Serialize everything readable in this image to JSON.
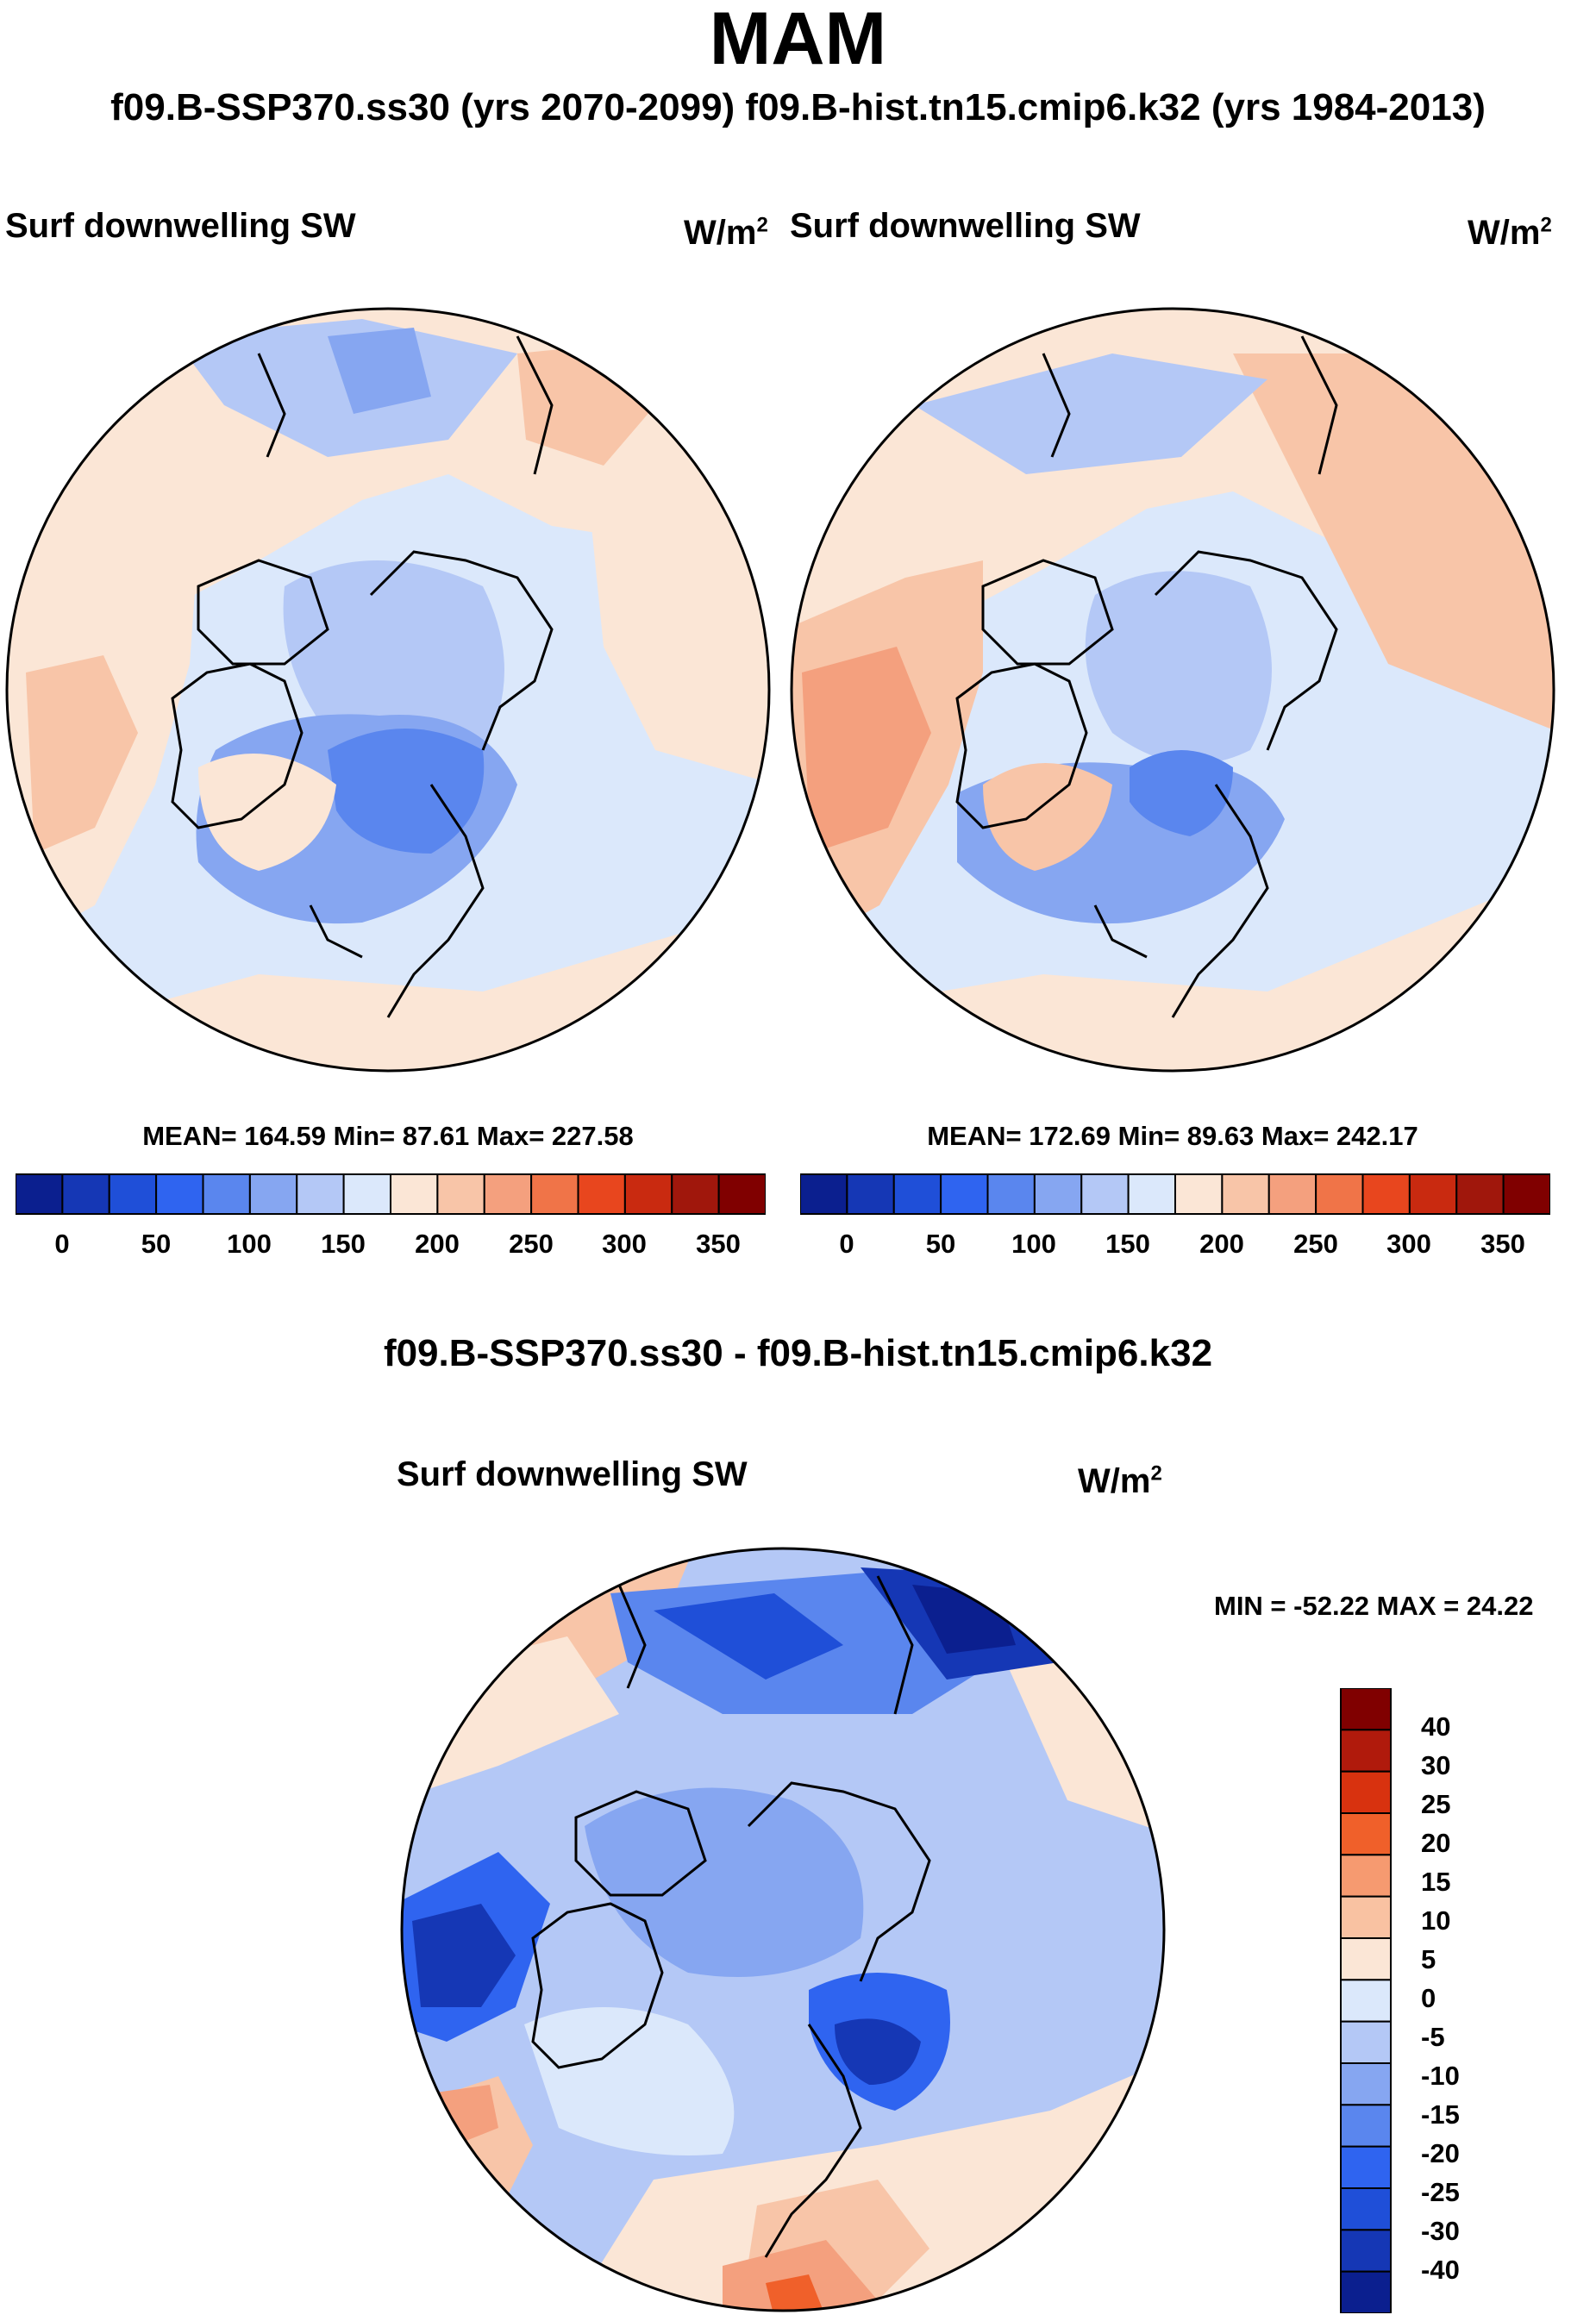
{
  "season": "MAM",
  "header": "f09.B-SSP370.ss30 (yrs 2070-2099)  f09.B-hist.tn15.cmip6.k32 (yrs 1984-2013)",
  "panels": [
    {
      "variable": "Surf downwelling SW",
      "unit": "W/m",
      "unit_exp": "2",
      "stats": "MEAN= 164.59  Min=  87.61  Max= 227.58",
      "colorbar_ticks": [
        "0",
        "50",
        "100",
        "150",
        "200",
        "250",
        "300",
        "350"
      ]
    },
    {
      "variable": "Surf downwelling SW",
      "unit": "W/m",
      "unit_exp": "2",
      "stats": "MEAN= 172.69  Min=  89.63  Max= 242.17",
      "colorbar_ticks": [
        "0",
        "50",
        "100",
        "150",
        "200",
        "250",
        "300",
        "350"
      ]
    }
  ],
  "diff": {
    "title": "f09.B-SSP370.ss30 - f09.B-hist.tn15.cmip6.k32",
    "variable": "Surf downwelling SW",
    "unit": "W/m",
    "unit_exp": "2",
    "minmax": "MIN = -52.22 MAX =  24.22",
    "colorbar_ticks": [
      "40",
      "30",
      "25",
      "20",
      "15",
      "10",
      "5",
      "0",
      "-5",
      "-10",
      "-15",
      "-20",
      "-25",
      "-30",
      "-40"
    ]
  },
  "colors": {
    "abs_scale": [
      "#0b1f8f",
      "#1537b5",
      "#1f4fd8",
      "#2f64f0",
      "#5a86ee",
      "#86a6f1",
      "#b4c8f6",
      "#dbe8fb",
      "#fbe6d6",
      "#f8c5a8",
      "#f4a07e",
      "#f07448",
      "#e8461e",
      "#c92a10",
      "#a0170c",
      "#800000"
    ],
    "diff_scale": [
      "#800000",
      "#b01a0c",
      "#d8320f",
      "#f0602a",
      "#f69a70",
      "#f9c2a2",
      "#fbe6d6",
      "#dbe8fb",
      "#b4c8f6",
      "#86a6f1",
      "#5a86ee",
      "#2f64f0",
      "#1f4fd8",
      "#1537b5",
      "#0b1f8f"
    ]
  }
}
